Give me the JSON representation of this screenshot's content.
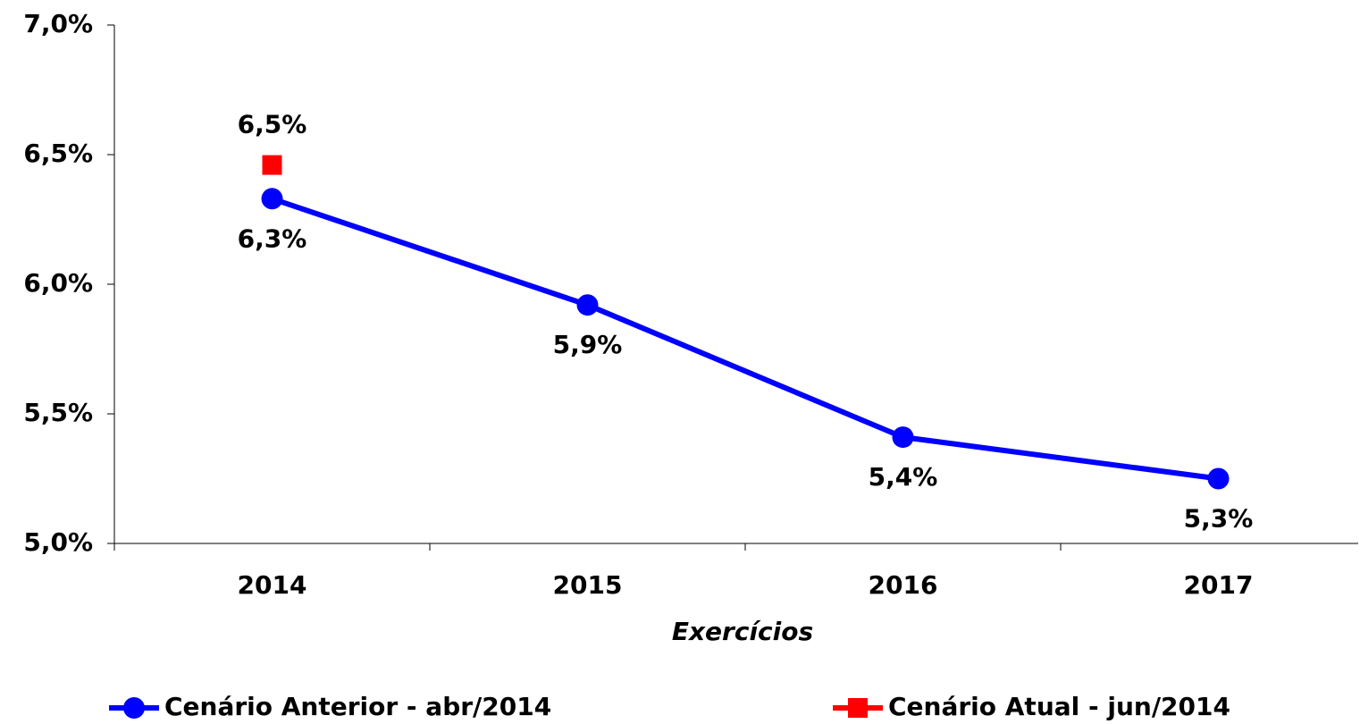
{
  "chart_data": {
    "type": "line",
    "x_label": "Exercícios",
    "categories": [
      "2014",
      "2015",
      "2016",
      "2017"
    ],
    "series": [
      {
        "name": "Cenário Anterior - abr/2014",
        "color": "#0000ff",
        "marker": "circle",
        "values": [
          6.33,
          5.92,
          5.41,
          5.25
        ],
        "value_labels": [
          "6,3%",
          "5,9%",
          "5,4%",
          "5,3%"
        ]
      },
      {
        "name": "Cenário Atual - jun/2014",
        "color": "#ff0000",
        "marker": "square",
        "values": [
          6.46,
          null,
          null,
          null
        ],
        "value_labels": [
          "6,5%",
          null,
          null,
          null
        ]
      }
    ],
    "ylim": [
      5,
      7
    ],
    "yticks": [
      {
        "value": 5,
        "label": "5,0%"
      },
      {
        "value": 5.5,
        "label": "5,5%"
      },
      {
        "value": 6,
        "label": "6,0%"
      },
      {
        "value": 6.5,
        "label": "6,5%"
      },
      {
        "value": 7,
        "label": "7,0%"
      }
    ],
    "grid": false
  }
}
